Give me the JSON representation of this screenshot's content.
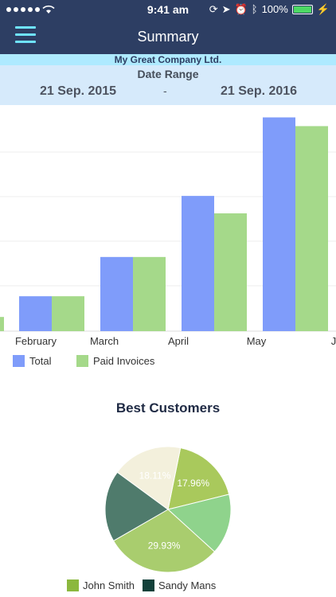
{
  "status_bar": {
    "time": "9:41 am",
    "battery": "100%"
  },
  "nav": {
    "title": "Summary"
  },
  "company": "My Great Company Ltd.",
  "date_range": {
    "label": "Date Range",
    "start": "21 Sep. 2015",
    "separator": "-",
    "end": "21 Sep. 2016"
  },
  "colors": {
    "header": "#2d3e63",
    "total": "#7f9cfa",
    "paid": "#a5d98a"
  },
  "chart_data": [
    {
      "type": "bar",
      "categories": [
        "February",
        "March",
        "April",
        "May",
        "J"
      ],
      "series": [
        {
          "name": "Total",
          "values": [
            16,
            34,
            62,
            98,
            null
          ]
        },
        {
          "name": "Paid Invoices",
          "values": [
            16,
            34,
            54,
            94,
            null
          ]
        }
      ],
      "legend": [
        "Total",
        "Paid Invoices"
      ],
      "grid": true,
      "legend_position": "bottom-left",
      "partial_left_bar": {
        "series": "Paid Invoices",
        "value": 6.5
      }
    },
    {
      "type": "pie",
      "title": "Best Customers",
      "slices": [
        {
          "label": "17.96%",
          "value": 17.96,
          "color": "#a9c95c"
        },
        {
          "label": "",
          "value": 15.6,
          "color": "#8fd38c"
        },
        {
          "label": "29.93%",
          "value": 29.93,
          "color": "#a9cd6e"
        },
        {
          "label": "",
          "value": 18.4,
          "color": "#4f7b6c"
        },
        {
          "label": "18.11%",
          "value": 18.11,
          "color": "#f3f0dc"
        }
      ],
      "legend": [
        {
          "name": "John Smith",
          "color": "#8bb83e"
        },
        {
          "name": "Sandy Mans",
          "color": "#12413a"
        }
      ]
    }
  ]
}
